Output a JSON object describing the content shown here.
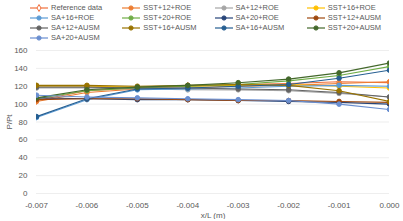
{
  "chart_data": {
    "type": "line",
    "x": [
      -0.007,
      -0.006,
      -0.005,
      -0.004,
      -0.003,
      -0.002,
      -0.001,
      0
    ],
    "xlabel": "x/L (m)",
    "ylabel": "P/Pt",
    "xlim": [
      -0.007,
      0
    ],
    "xticks": [
      -0.007,
      -0.006,
      -0.005,
      -0.004,
      -0.003,
      -0.002,
      -0.001,
      {
        "value": 0,
        "label": "0.000"
      }
    ],
    "ylim": [
      0,
      160
    ],
    "yticks": [
      0,
      20,
      40,
      60,
      80,
      100,
      120,
      140,
      160
    ],
    "grid": true,
    "legend": "top",
    "series": [
      {
        "name": "Reference data",
        "color": "#F0703C",
        "marker": "diamond",
        "values": [
          104,
          115,
          118,
          120,
          122,
          123,
          125,
          124
        ]
      },
      {
        "name": "SST+12+ROE",
        "color": "#ED7D31",
        "marker": "circle",
        "values": [
          103,
          113,
          117,
          118,
          120,
          121,
          123,
          125
        ]
      },
      {
        "name": "SA+12+ROE",
        "color": "#A5A5A5",
        "marker": "circle",
        "values": [
          118,
          118,
          117,
          116,
          116,
          115,
          112,
          108
        ]
      },
      {
        "name": "SST+16+ROE",
        "color": "#FFC000",
        "marker": "circle",
        "values": [
          120,
          120,
          119,
          120,
          121,
          122,
          120,
          118
        ]
      },
      {
        "name": "SA+16+ROE",
        "color": "#5B9BD5",
        "marker": "circle",
        "values": [
          85,
          105,
          116,
          117,
          118,
          120,
          121,
          120
        ]
      },
      {
        "name": "SST+20+ROE",
        "color": "#70AD47",
        "marker": "circle",
        "values": [
          106,
          115,
          118,
          120,
          122,
          126,
          132,
          142
        ]
      },
      {
        "name": "SA+20+ROE",
        "color": "#264478",
        "marker": "circle",
        "values": [
          107,
          106,
          105,
          105,
          104,
          103,
          102,
          100
        ]
      },
      {
        "name": "SST+12+AUSM",
        "color": "#9E480E",
        "marker": "circle",
        "values": [
          105,
          106,
          106,
          105,
          104,
          104,
          103,
          102
        ]
      },
      {
        "name": "SA+12+AUSM",
        "color": "#636363",
        "marker": "circle",
        "values": [
          119,
          119,
          118,
          118,
          117,
          116,
          113,
          108
        ]
      },
      {
        "name": "SST+16+AUSM",
        "color": "#997300",
        "marker": "circle",
        "values": [
          121,
          121,
          120,
          121,
          122,
          121,
          115,
          103
        ]
      },
      {
        "name": "SA+16+AUSM",
        "color": "#255E91",
        "marker": "circle",
        "values": [
          86,
          106,
          117,
          118,
          120,
          122,
          129,
          138
        ]
      },
      {
        "name": "SST+20+AUSM",
        "color": "#43682B",
        "marker": "circle",
        "values": [
          107,
          116,
          119,
          121,
          124,
          128,
          135,
          146
        ]
      },
      {
        "name": "SA+20+AUSM",
        "color": "#698ED0",
        "marker": "circle",
        "values": [
          110,
          108,
          107,
          106,
          105,
          104,
          100,
          94
        ]
      }
    ]
  }
}
